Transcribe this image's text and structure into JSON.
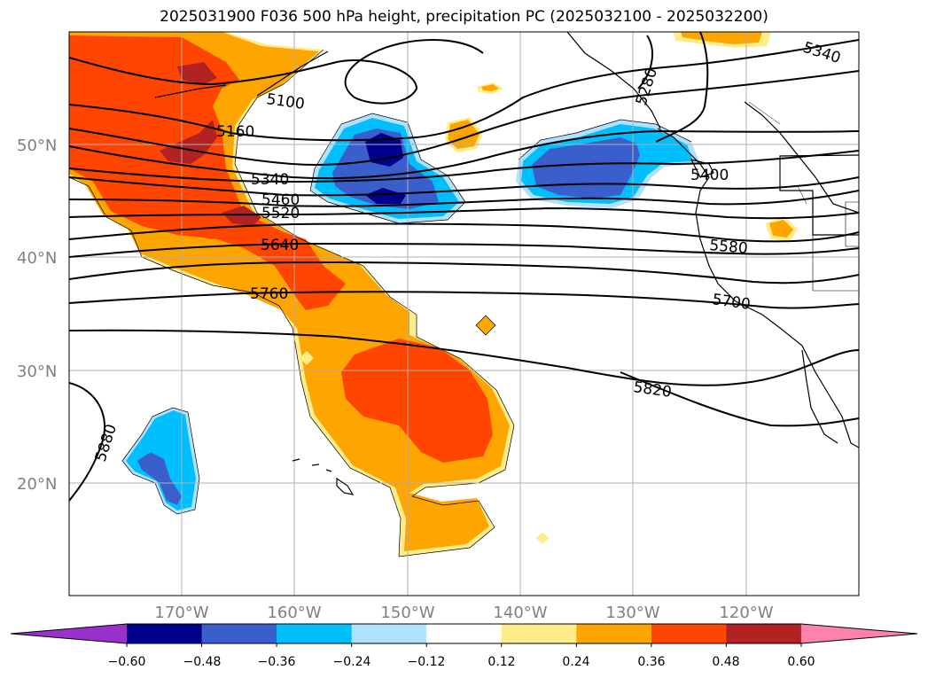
{
  "title": "2025031900 F036 500 hPa height, precipitation PC (2025032100 - 2025032200)",
  "map": {
    "lon_range": [
      -180,
      -110
    ],
    "lat_range": [
      10,
      60
    ],
    "lat_labels": [
      "50°N",
      "40°N",
      "30°N",
      "20°N"
    ],
    "lon_labels": [
      "170°W",
      "160°W",
      "150°W",
      "140°W",
      "130°W",
      "120°W"
    ],
    "grid": true
  },
  "contour_labels": [
    "5100",
    "5160",
    "5340",
    "5460",
    "5520",
    "5640",
    "5760",
    "5880",
    "5280",
    "5340",
    "5400",
    "5580",
    "5700",
    "5820"
  ],
  "colorbar": {
    "ticks": [
      "−0.60",
      "−0.48",
      "−0.36",
      "−0.24",
      "−0.12",
      "0.12",
      "0.24",
      "0.36",
      "0.48",
      "0.60"
    ],
    "colors": [
      "#9932cc",
      "#00008b",
      "#3a5fcd",
      "#00bfff",
      "#b0e2ff",
      "#ffffff",
      "#ffec8b",
      "#ffa500",
      "#ff4500",
      "#b22222",
      "#ff82ab"
    ]
  }
}
